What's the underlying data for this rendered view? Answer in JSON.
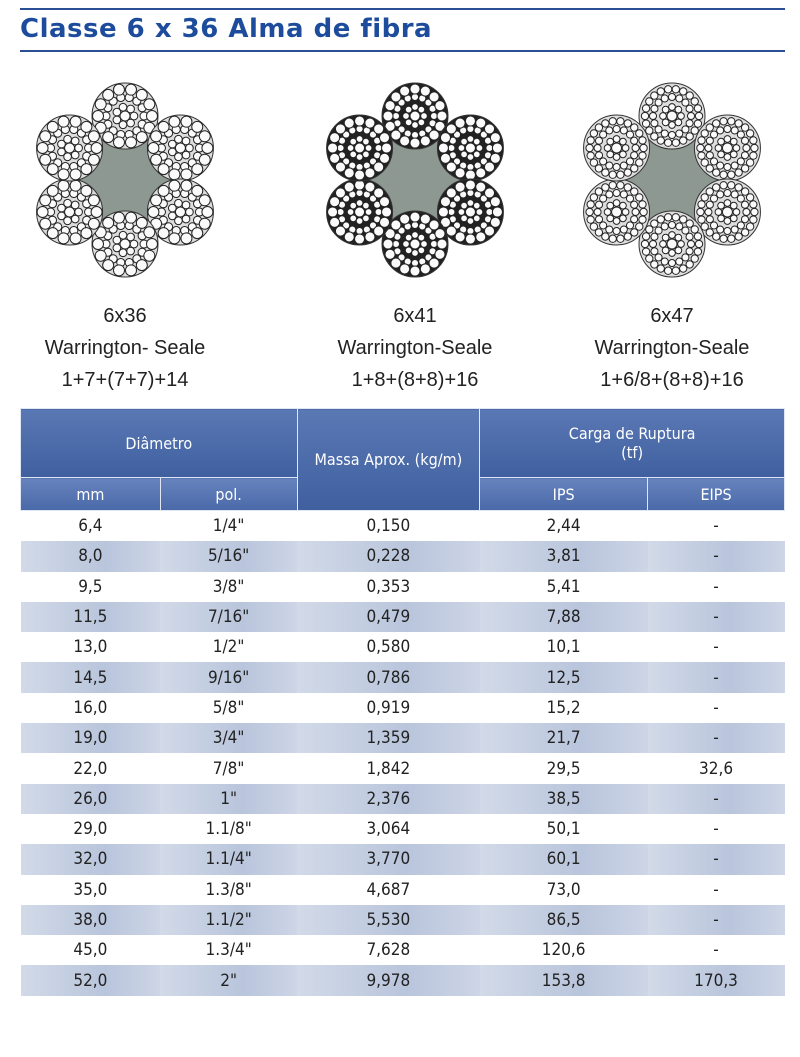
{
  "header": {
    "title": "Classe 6 x 36 Alma de fibra"
  },
  "ropes": [
    {
      "name": "6x36",
      "construction": "Warrington- Seale",
      "formula": "1+7+(7+7)+14"
    },
    {
      "name": "6x41",
      "construction": "Warrington-Seale",
      "formula": "1+8+(8+8)+16"
    },
    {
      "name": "6x47",
      "construction": "Warrington-Seale",
      "formula": "1+6/8+(8+8)+16"
    }
  ],
  "table": {
    "headers": {
      "diameter": "Diâmetro",
      "mass": "Massa Aprox. (kg/m)",
      "breaking_load": "Carga de Ruptura (tf)",
      "mm": "mm",
      "pol": "pol.",
      "ips": "IPS",
      "eips": "EIPS"
    },
    "rows": [
      [
        "6,4",
        "1/4\"",
        "0,150",
        "2,44",
        "-"
      ],
      [
        "8,0",
        "5/16\"",
        "0,228",
        "3,81",
        "-"
      ],
      [
        "9,5",
        "3/8\"",
        "0,353",
        "5,41",
        "-"
      ],
      [
        "11,5",
        "7/16\"",
        "0,479",
        "7,88",
        "-"
      ],
      [
        "13,0",
        "1/2\"",
        "0,580",
        "10,1",
        "-"
      ],
      [
        "14,5",
        "9/16\"",
        "0,786",
        "12,5",
        "-"
      ],
      [
        "16,0",
        "5/8\"",
        "0,919",
        "15,2",
        "-"
      ],
      [
        "19,0",
        "3/4\"",
        "1,359",
        "21,7",
        "-"
      ],
      [
        "22,0",
        "7/8\"",
        "1,842",
        "29,5",
        "32,6"
      ],
      [
        "26,0",
        "1\"",
        "2,376",
        "38,5",
        "-"
      ],
      [
        "29,0",
        "1.1/8\"",
        "3,064",
        "50,1",
        "-"
      ],
      [
        "32,0",
        "1.1/4\"",
        "3,770",
        "60,1",
        "-"
      ],
      [
        "35,0",
        "1.3/8\"",
        "4,687",
        "73,0",
        "-"
      ],
      [
        "38,0",
        "1.1/2\"",
        "5,530",
        "86,5",
        "-"
      ],
      [
        "45,0",
        "1.3/4\"",
        "7,628",
        "120,6",
        "-"
      ],
      [
        "52,0",
        "2\"",
        "9,978",
        "153,8",
        "170,3"
      ]
    ]
  }
}
